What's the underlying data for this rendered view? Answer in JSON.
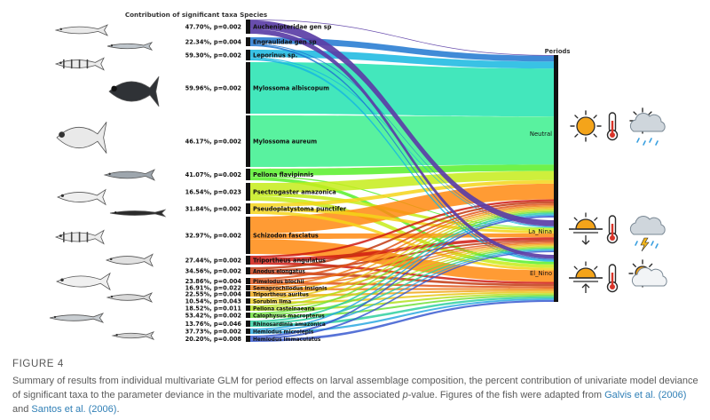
{
  "figure": {
    "header": "Contribution of significant taxa Species",
    "periods_title": "Periods",
    "taxa": [
      {
        "name": "Auchenipteridae gen sp",
        "stat": "47.70%, p=0.002",
        "color": "#5b3ea6"
      },
      {
        "name": "Engraulidae gen sp",
        "stat": "22.34%, p=0.004",
        "color": "#1f77d0"
      },
      {
        "name": "Leporinus sp.",
        "stat": "59.30%, p=0.002",
        "color": "#16b7e0"
      },
      {
        "name": "Mylossoma albiscopum",
        "stat": "59.96%, p=0.002",
        "color": "#22e3b0"
      },
      {
        "name": "Mylossoma aureum",
        "stat": "46.17%, p=0.002",
        "color": "#3cf08e"
      },
      {
        "name": "Pellona flavipinnis",
        "stat": "41.07%, p=0.002",
        "color": "#57f02a"
      },
      {
        "name": "Psectrogaster amazonica",
        "stat": "16.54%, p=0.023",
        "color": "#c6ec1a"
      },
      {
        "name": "Pseudoplatystoma punctifer",
        "stat": "31.84%, p=0.002",
        "color": "#f4d51a"
      },
      {
        "name": "Schizodon fasciatus",
        "stat": "32.97%, p=0.002",
        "color": "#ff8a10"
      },
      {
        "name": "Triportheus angulatus",
        "stat": "27.44%, p=0.002",
        "color": "#cf1a10"
      },
      {
        "name": "Anodus elongatus",
        "stat": "34.56%, p=0.002",
        "color": "#c23a12"
      },
      {
        "name": "Pimelodus blochii",
        "stat": "23.86%, p=0.004",
        "color": "#e0551a"
      },
      {
        "name": "Semaprochilodus insignis",
        "stat": "16.91%, p=0.022",
        "color": "#f07a18"
      },
      {
        "name": "Triportheus auritus",
        "stat": "22.55%, p=0.004",
        "color": "#f0a818"
      },
      {
        "name": "Sorubim lima",
        "stat": "10.54%, p=0.043",
        "color": "#e8c81a"
      },
      {
        "name": "Pellona castelnaeana",
        "stat": "18.52%, p=0.011",
        "color": "#b4e020"
      },
      {
        "name": "Calophysus macropterus",
        "stat": "53.42%, p=0.002",
        "color": "#6ee03a"
      },
      {
        "name": "Rhinosardinia amazonica",
        "stat": "13.76%, p=0.046",
        "color": "#2ed0a0"
      },
      {
        "name": "Hemiodus microlepis",
        "stat": "37.73%, p=0.002",
        "color": "#2aa8e0"
      },
      {
        "name": "Hemiodus immaculatus",
        "stat": "20.20%, p=0.008",
        "color": "#3a5ad0"
      }
    ],
    "periods": [
      {
        "name": "Neutral",
        "icons": [
          "sun-icon",
          "thermometer-icon",
          "rain-cloud-icon"
        ]
      },
      {
        "name": "La_Nina",
        "icons": [
          "sunset-down-icon",
          "thermometer-icon",
          "storm-cloud-icon"
        ]
      },
      {
        "name": "El_Nino",
        "icons": [
          "sunrise-up-icon",
          "thermometer-icon",
          "sun-cloud-icon"
        ]
      }
    ]
  },
  "caption": {
    "label": "FIGURE 4",
    "text_1": "Summary of results from individual multivariate GLM for period effects on larval assemblage composition, the percent contribution of univariate model deviance of significant taxa to the parameter deviance in the multivariate model, and the associated ",
    "p_symbol": "p",
    "text_2": "-value. Figures of the fish were adapted from ",
    "ref_1": "Galvis et al. (2006)",
    "text_3": " and ",
    "ref_2": "Santos et al. (2006)",
    "text_4": "."
  }
}
